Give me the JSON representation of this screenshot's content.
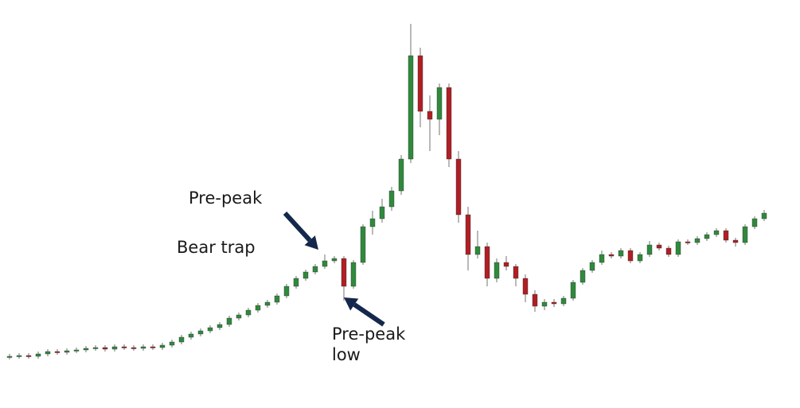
{
  "chart_data": {
    "type": "candlestick",
    "annotations": [
      {
        "text": "Pre-peak"
      },
      {
        "text": "Bear trap"
      },
      {
        "lines": [
          "Pre-peak",
          "low"
        ]
      }
    ],
    "up_color": "#2f8a3c",
    "down_color": "#b01e23",
    "wick_color": "#8a8a8a",
    "arrow_color": "#14284b",
    "ylim": [
      0,
      480
    ],
    "open": [
      51,
      52,
      53,
      52,
      55,
      58,
      57,
      59,
      60,
      62,
      63,
      61,
      64,
      63,
      62,
      64,
      63,
      66,
      70,
      76,
      80,
      84,
      88,
      92,
      100,
      104,
      110,
      116,
      120,
      128,
      140,
      150,
      158,
      165,
      172,
      175,
      140,
      170,
      215,
      225,
      240,
      260,
      300,
      430,
      360,
      350,
      390,
      300,
      230,
      180,
      190,
      150,
      170,
      165,
      150,
      130,
      115,
      120,
      118,
      125,
      145,
      160,
      170,
      180,
      178,
      185,
      172,
      180,
      192,
      188,
      180,
      196,
      195,
      200,
      205,
      210,
      198,
      195,
      215,
      225
    ],
    "high": [
      55,
      56,
      56,
      58,
      61,
      61,
      62,
      63,
      65,
      66,
      66,
      67,
      67,
      66,
      67,
      67,
      69,
      73,
      79,
      83,
      87,
      91,
      95,
      103,
      107,
      113,
      119,
      123,
      131,
      143,
      153,
      161,
      168,
      180,
      178,
      178,
      173,
      218,
      235,
      250,
      265,
      305,
      470,
      440,
      380,
      395,
      395,
      310,
      240,
      210,
      195,
      175,
      178,
      168,
      155,
      135,
      124,
      124,
      128,
      148,
      163,
      173,
      185,
      183,
      188,
      188,
      183,
      197,
      195,
      191,
      199,
      199,
      203,
      208,
      213,
      213,
      201,
      218,
      228,
      236
    ],
    "low": [
      48,
      49,
      49,
      49,
      52,
      54,
      54,
      56,
      57,
      59,
      58,
      58,
      60,
      59,
      59,
      60,
      60,
      63,
      67,
      73,
      77,
      81,
      85,
      89,
      97,
      101,
      107,
      113,
      117,
      125,
      137,
      147,
      155,
      162,
      169,
      122,
      137,
      167,
      205,
      220,
      235,
      255,
      295,
      340,
      310,
      330,
      290,
      220,
      160,
      175,
      140,
      145,
      160,
      140,
      120,
      108,
      110,
      114,
      115,
      122,
      142,
      157,
      167,
      175,
      175,
      169,
      169,
      177,
      185,
      177,
      177,
      192,
      192,
      197,
      202,
      195,
      190,
      192,
      212,
      222
    ],
    "close": [
      52,
      53,
      52,
      55,
      58,
      57,
      59,
      60,
      62,
      63,
      61,
      64,
      63,
      62,
      64,
      63,
      66,
      70,
      76,
      80,
      84,
      88,
      92,
      100,
      104,
      110,
      116,
      120,
      128,
      140,
      150,
      158,
      165,
      172,
      175,
      140,
      170,
      215,
      225,
      240,
      260,
      300,
      430,
      360,
      350,
      390,
      300,
      230,
      180,
      190,
      150,
      170,
      165,
      150,
      130,
      115,
      120,
      118,
      125,
      145,
      160,
      170,
      180,
      178,
      185,
      172,
      180,
      192,
      188,
      180,
      196,
      195,
      200,
      205,
      210,
      198,
      195,
      215,
      225,
      232
    ]
  }
}
